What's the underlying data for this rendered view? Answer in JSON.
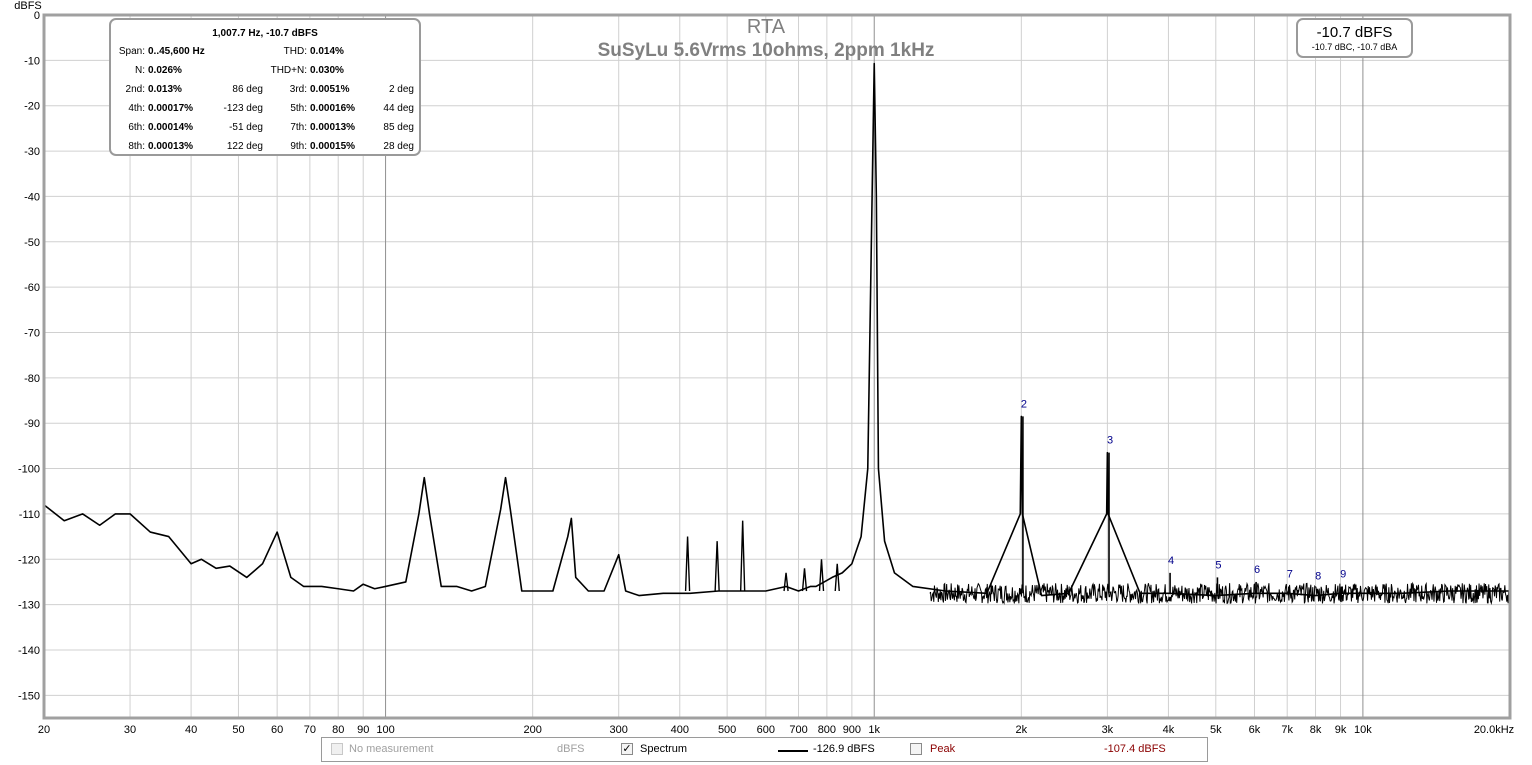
{
  "chart_data": {
    "type": "line",
    "title": "RTA",
    "subtitle": "SuSyLu 5.6Vrms 10ohms, 2ppm 1kHz",
    "ylabel": "dBFS",
    "xscale": "log",
    "xlim": [
      20,
      20000
    ],
    "ylim": [
      -155,
      0
    ],
    "x_tick_labels": [
      "20",
      "30",
      "40",
      "50",
      "60",
      "70",
      "80",
      "90",
      "100",
      "200",
      "300",
      "400",
      "500",
      "600",
      "700",
      "800",
      "900",
      "1k",
      "2k",
      "3k",
      "4k",
      "5k",
      "6k",
      "7k",
      "8k",
      "9k",
      "10k",
      "20.0kHz"
    ],
    "y_tick_labels": [
      "0",
      "-10",
      "-20",
      "-30",
      "-40",
      "-50",
      "-60",
      "-70",
      "-80",
      "-90",
      "-100",
      "-110",
      "-120",
      "-130",
      "-140",
      "-150"
    ],
    "grid": true,
    "series": [
      {
        "name": "Spectrum",
        "color": "#000000",
        "x": [
          20,
          22,
          24,
          26,
          28,
          30,
          33,
          36,
          40,
          42,
          45,
          48,
          52,
          56,
          60,
          64,
          68,
          74,
          80,
          86,
          90,
          95,
          100,
          110,
          117,
          120,
          123,
          130,
          140,
          150,
          160,
          172,
          176,
          180,
          190,
          200,
          220,
          236,
          240,
          245,
          260,
          280,
          300,
          310,
          330,
          370,
          420,
          480,
          540,
          600,
          660,
          700,
          740,
          760,
          790,
          820,
          860,
          900,
          940,
          970,
          990,
          1000,
          1010,
          1020,
          1050,
          1100,
          1200,
          1400,
          1700,
          1990,
          2000,
          2010,
          2200,
          2500,
          2990,
          3000,
          3010,
          3500,
          4000,
          5000,
          6000,
          7000,
          8000,
          9000,
          10000,
          12000,
          15000,
          18000,
          20000
        ],
        "y": [
          -108,
          -111.5,
          -110,
          -112.5,
          -110,
          -110,
          -114,
          -115,
          -121,
          -120,
          -122,
          -121.5,
          -124,
          -121,
          -114,
          -124,
          -126,
          -126,
          -126.5,
          -127,
          -125.5,
          -126.5,
          -126,
          -125,
          -110,
          -102,
          -110,
          -126,
          -126,
          -127,
          -126,
          -109,
          -102,
          -109,
          -127,
          -127,
          -127,
          -115,
          -111,
          -124,
          -127,
          -127,
          -119,
          -127,
          -128,
          -127.5,
          -127.5,
          -127,
          -127,
          -127,
          -126,
          -127,
          -126,
          -126,
          -125,
          -124,
          -123,
          -121,
          -115,
          -100,
          -40,
          -10.7,
          -40,
          -100,
          -116,
          -123,
          -126,
          -127,
          -127.5,
          -110,
          -88.5,
          -110,
          -128,
          -127.5,
          -110,
          -96.5,
          -110,
          -127.5,
          -127.5,
          -128,
          -127.5,
          -127.5,
          -128,
          -127.5,
          -127.5,
          -127.5,
          -127,
          -127,
          -127
        ]
      }
    ],
    "harmonics": [
      {
        "label": "2",
        "x": 2015,
        "y": -88.5
      },
      {
        "label": "3",
        "x": 3023,
        "y": -96.5
      },
      {
        "label": "4",
        "x": 4031,
        "y": -123
      },
      {
        "label": "5",
        "x": 5039,
        "y": -124
      },
      {
        "label": "6",
        "x": 6046,
        "y": -125
      },
      {
        "label": "7",
        "x": 7054,
        "y": -126
      },
      {
        "label": "8",
        "x": 8062,
        "y": -126.5
      },
      {
        "label": "9",
        "x": 9070,
        "y": -126
      }
    ],
    "spurs": [
      {
        "x": 415,
        "y": -115
      },
      {
        "x": 477,
        "y": -116
      },
      {
        "x": 538,
        "y": -111.5
      },
      {
        "x": 660,
        "y": -123
      },
      {
        "x": 720,
        "y": -122
      },
      {
        "x": 780,
        "y": -120
      },
      {
        "x": 840,
        "y": -121
      }
    ],
    "noise_floor": -127.5,
    "noise_start_hz": 1300
  },
  "infobox": {
    "header": "1,007.7 Hz, -10.7 dBFS",
    "rows": [
      {
        "l1": "Span:",
        "v1": "0..45,600 Hz",
        "p1": "",
        "l2": "THD:",
        "v2": "0.014%",
        "p2": ""
      },
      {
        "l1": "N:",
        "v1": "0.026%",
        "p1": "",
        "l2": "THD+N:",
        "v2": "0.030%",
        "p2": ""
      },
      {
        "l1": "2nd:",
        "v1": "0.013%",
        "p1": "86 deg",
        "l2": "3rd:",
        "v2": "0.0051%",
        "p2": "2 deg"
      },
      {
        "l1": "4th:",
        "v1": "0.00017%",
        "p1": "-123 deg",
        "l2": "5th:",
        "v2": "0.00016%",
        "p2": "44 deg"
      },
      {
        "l1": "6th:",
        "v1": "0.00014%",
        "p1": "-51 deg",
        "l2": "7th:",
        "v2": "0.00013%",
        "p2": "85 deg"
      },
      {
        "l1": "8th:",
        "v1": "0.00013%",
        "p1": "122 deg",
        "l2": "9th:",
        "v2": "0.00015%",
        "p2": "28 deg"
      }
    ]
  },
  "level": {
    "main": "-10.7 dBFS",
    "sub": "-10.7 dBC, -10.7 dBA"
  },
  "legend": {
    "no_measurement": "No measurement",
    "no_measurement_unit": "dBFS",
    "spectrum_check": "✓",
    "spectrum": "Spectrum",
    "spectrum_value": "-126.9 dBFS",
    "peak": "Peak",
    "peak_value": "-107.4 dBFS",
    "peak_color": "#8b0000"
  }
}
